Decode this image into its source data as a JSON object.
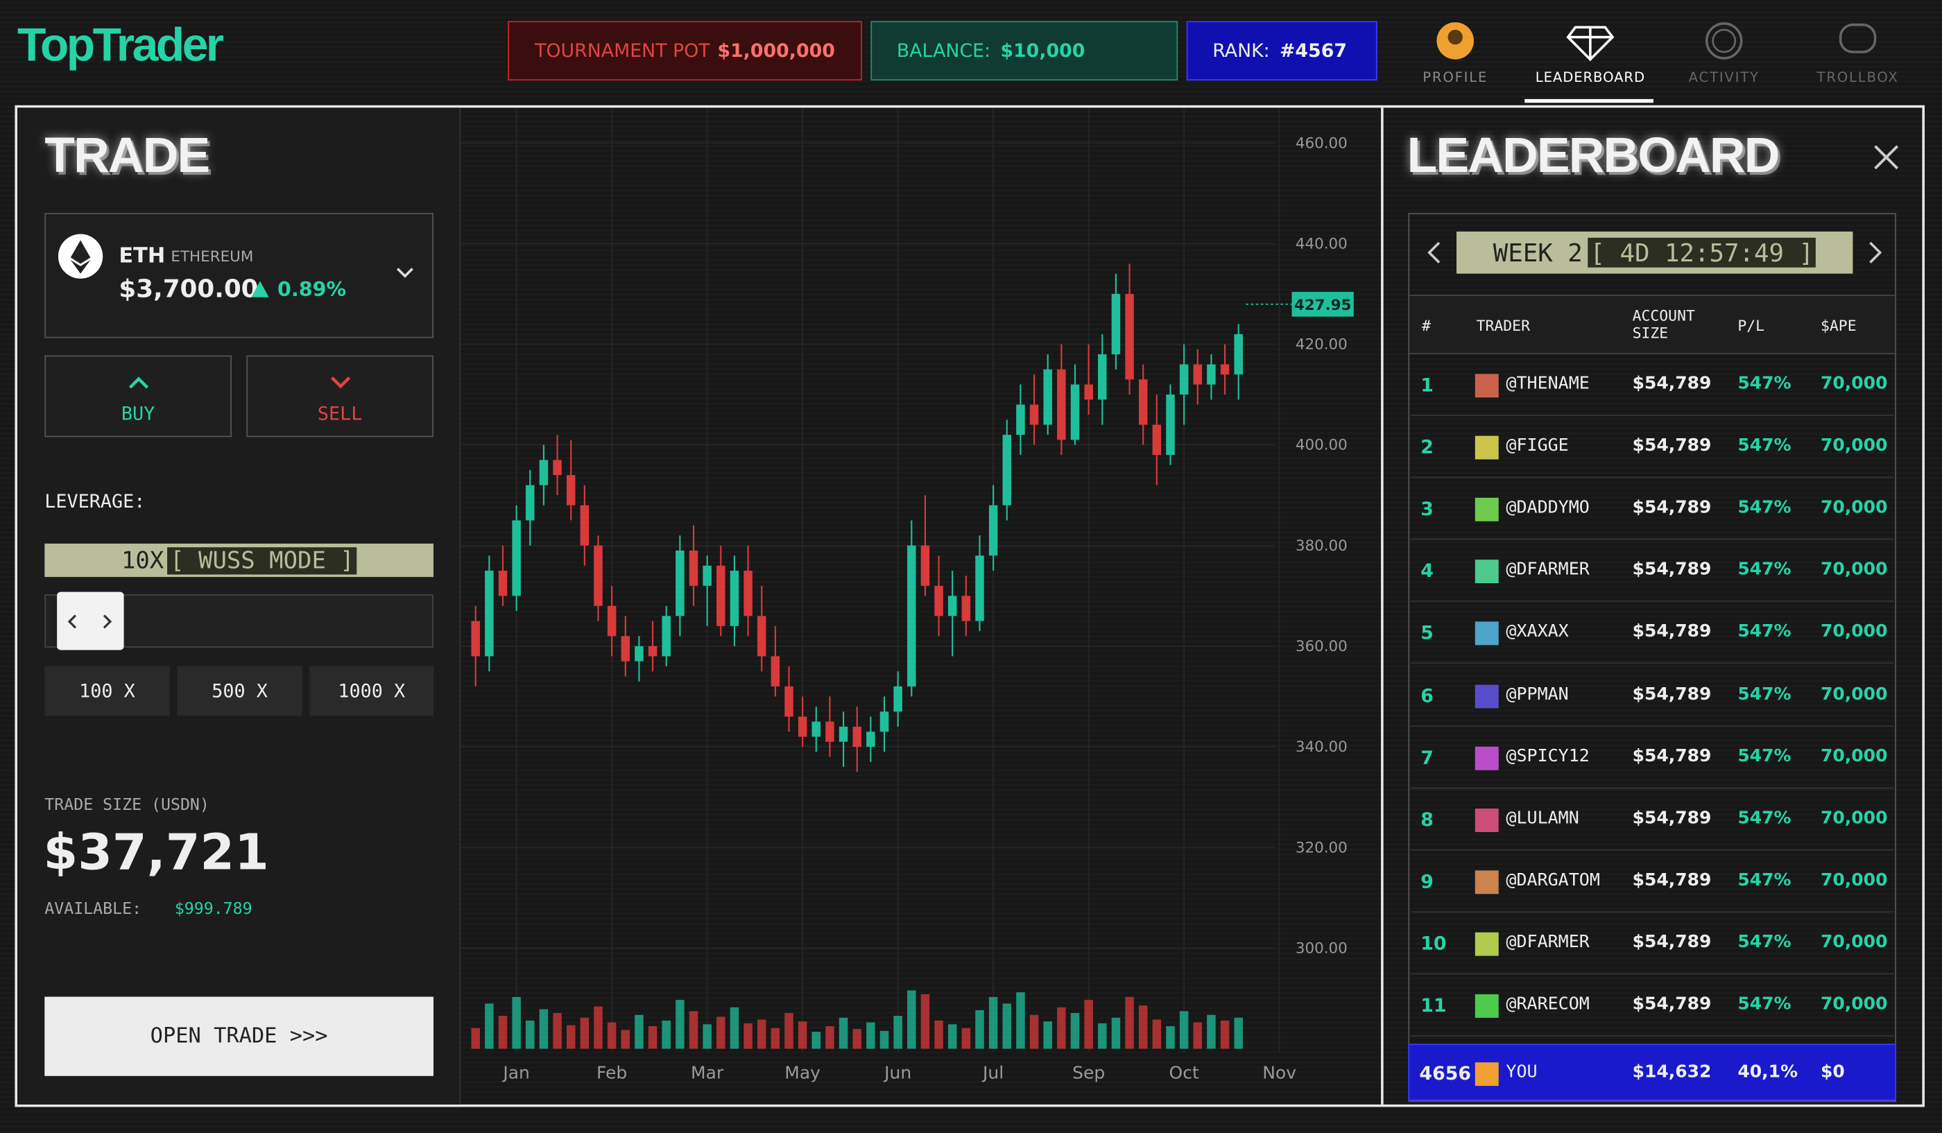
{
  "header": {
    "logo": "TopTrader",
    "pot_label": "TOURNAMENT POT",
    "pot_value": "$1,000,000",
    "balance_label": "BALANCE:",
    "balance_value": "$10,000",
    "rank_label": "RANK:",
    "rank_value": "#4567",
    "nav": [
      "PROFILE",
      "LEADERBOARD",
      "ACTIVITY",
      "TROLLBOX"
    ]
  },
  "trade": {
    "title": "TRADE",
    "asset": {
      "symbol": "ETH",
      "name": "ETHEREUM",
      "price": "$3,700.00",
      "change": "0.89%"
    },
    "buy": "BUY",
    "sell": "SELL",
    "leverage_label": "LEVERAGE:",
    "leverage_value": "10X",
    "leverage_mode": "[ WUSS MODE ]",
    "presets": [
      "100 X",
      "500 X",
      "1000 X"
    ],
    "size_label": "TRADE SIZE (USDN)",
    "size_value": "$37,721",
    "available_label": "AVAILABLE:",
    "available_value": "$999.789",
    "open_button": "OPEN TRADE >>>"
  },
  "chart_data": {
    "type": "candlestick",
    "categories": [
      null,
      null,
      null,
      "Jan",
      null,
      null,
      null,
      null,
      null,
      null,
      "Feb",
      null,
      null,
      null,
      null,
      null,
      null,
      "Mar",
      null,
      null,
      null,
      null,
      null,
      null,
      "May",
      null,
      null,
      null,
      null,
      null,
      null,
      "Jun",
      null,
      null,
      null,
      null,
      null,
      null,
      "Jul",
      null,
      null,
      null,
      null,
      null,
      null,
      "Sep",
      null,
      null,
      null,
      null,
      null,
      null,
      "Oct",
      null,
      null,
      null,
      null,
      null,
      null,
      "Nov"
    ],
    "open": [
      365,
      358,
      375,
      370,
      385,
      392,
      397,
      394,
      388,
      380,
      368,
      362,
      357,
      360,
      358,
      366,
      379,
      372,
      376,
      364,
      375,
      366,
      358,
      352,
      346,
      342,
      345,
      341,
      344,
      340,
      343,
      347,
      352,
      380,
      372,
      366,
      370,
      365,
      378,
      388,
      402,
      408,
      404,
      415,
      401,
      412,
      409,
      418,
      430,
      413,
      404,
      398,
      410,
      416,
      412,
      416,
      414,
      null,
      null,
      null
    ],
    "high": [
      368,
      378,
      380,
      388,
      395,
      400,
      402,
      401,
      392,
      382,
      372,
      366,
      362,
      365,
      368,
      382,
      384,
      378,
      380,
      378,
      380,
      372,
      364,
      356,
      350,
      348,
      350,
      347,
      348,
      346,
      350,
      355,
      385,
      390,
      378,
      375,
      374,
      382,
      392,
      405,
      412,
      414,
      418,
      420,
      416,
      420,
      422,
      434,
      436,
      416,
      410,
      412,
      420,
      419,
      418,
      420,
      424,
      null,
      null,
      null
    ],
    "low": [
      352,
      355,
      368,
      367,
      380,
      388,
      390,
      385,
      376,
      365,
      358,
      354,
      353,
      355,
      356,
      362,
      368,
      364,
      362,
      360,
      362,
      355,
      350,
      343,
      340,
      339,
      338,
      336,
      335,
      337,
      339,
      344,
      350,
      370,
      362,
      358,
      362,
      363,
      375,
      385,
      398,
      400,
      402,
      398,
      400,
      406,
      404,
      415,
      410,
      400,
      392,
      396,
      404,
      408,
      409,
      410,
      409,
      null,
      null,
      null
    ],
    "close": [
      358,
      375,
      370,
      385,
      392,
      397,
      394,
      388,
      380,
      368,
      362,
      357,
      360,
      358,
      366,
      379,
      372,
      376,
      364,
      375,
      366,
      358,
      352,
      346,
      342,
      345,
      341,
      344,
      340,
      343,
      347,
      352,
      380,
      372,
      366,
      370,
      365,
      378,
      388,
      402,
      408,
      404,
      415,
      401,
      412,
      409,
      418,
      430,
      413,
      404,
      398,
      410,
      416,
      412,
      416,
      414,
      422,
      null,
      null,
      null
    ],
    "volume": [
      22,
      48,
      35,
      55,
      30,
      42,
      38,
      25,
      33,
      45,
      28,
      20,
      36,
      24,
      30,
      52,
      40,
      26,
      34,
      44,
      27,
      31,
      22,
      38,
      29,
      18,
      24,
      33,
      21,
      28,
      19,
      35,
      62,
      58,
      30,
      26,
      22,
      41,
      55,
      48,
      60,
      36,
      29,
      44,
      38,
      52,
      27,
      33,
      55,
      46,
      31,
      24,
      40,
      28,
      36,
      30,
      33,
      null,
      null,
      null
    ],
    "up_color": "#1fbf9b",
    "down_color": "#d93a3a",
    "ylim": [
      280,
      467
    ],
    "yticks": [
      {
        "value": 460,
        "label": "460.00"
      },
      {
        "value": 440,
        "label": "440.00"
      },
      {
        "value": 420,
        "label": "420.00"
      },
      {
        "value": 400,
        "label": "400.00"
      },
      {
        "value": 380,
        "label": "380.00"
      },
      {
        "value": 360,
        "label": "360.00"
      },
      {
        "value": 340,
        "label": "340.00"
      },
      {
        "value": 320,
        "label": "320.00"
      },
      {
        "value": 300,
        "label": "300.00"
      }
    ],
    "y2lim": [
      0,
      1000
    ],
    "last_price": 427.95,
    "grid": true
  },
  "leaderboard": {
    "title": "LEADERBOARD",
    "week": "WEEK 2",
    "countdown": "[ 4D 12:57:49 ]",
    "columns": [
      "#",
      "TRADER",
      "ACCOUNT SIZE",
      "P/L",
      "$APE"
    ],
    "rows": [
      [
        "1",
        "@THENAME",
        "$54,789",
        "547%",
        "70,000"
      ],
      [
        "2",
        "@FIGGE",
        "$54,789",
        "547%",
        "70,000"
      ],
      [
        "3",
        "@DADDYMO",
        "$54,789",
        "547%",
        "70,000"
      ],
      [
        "4",
        "@DFARMER",
        "$54,789",
        "547%",
        "70,000"
      ],
      [
        "5",
        "@XAXAX",
        "$54,789",
        "547%",
        "70,000"
      ],
      [
        "6",
        "@PPMAN",
        "$54,789",
        "547%",
        "70,000"
      ],
      [
        "7",
        "@SPICY12",
        "$54,789",
        "547%",
        "70,000"
      ],
      [
        "8",
        "@LULAMN",
        "$54,789",
        "547%",
        "70,000"
      ],
      [
        "9",
        "@DARGATOM",
        "$54,789",
        "547%",
        "70,000"
      ],
      [
        "10",
        "@DFARMER",
        "$54,789",
        "547%",
        "70,000"
      ],
      [
        "11",
        "@RARECOM",
        "$54,789",
        "547%",
        "70,000"
      ]
    ],
    "you": [
      "4656",
      "YOU",
      "$14,632",
      "40,1%",
      "$0"
    ]
  }
}
